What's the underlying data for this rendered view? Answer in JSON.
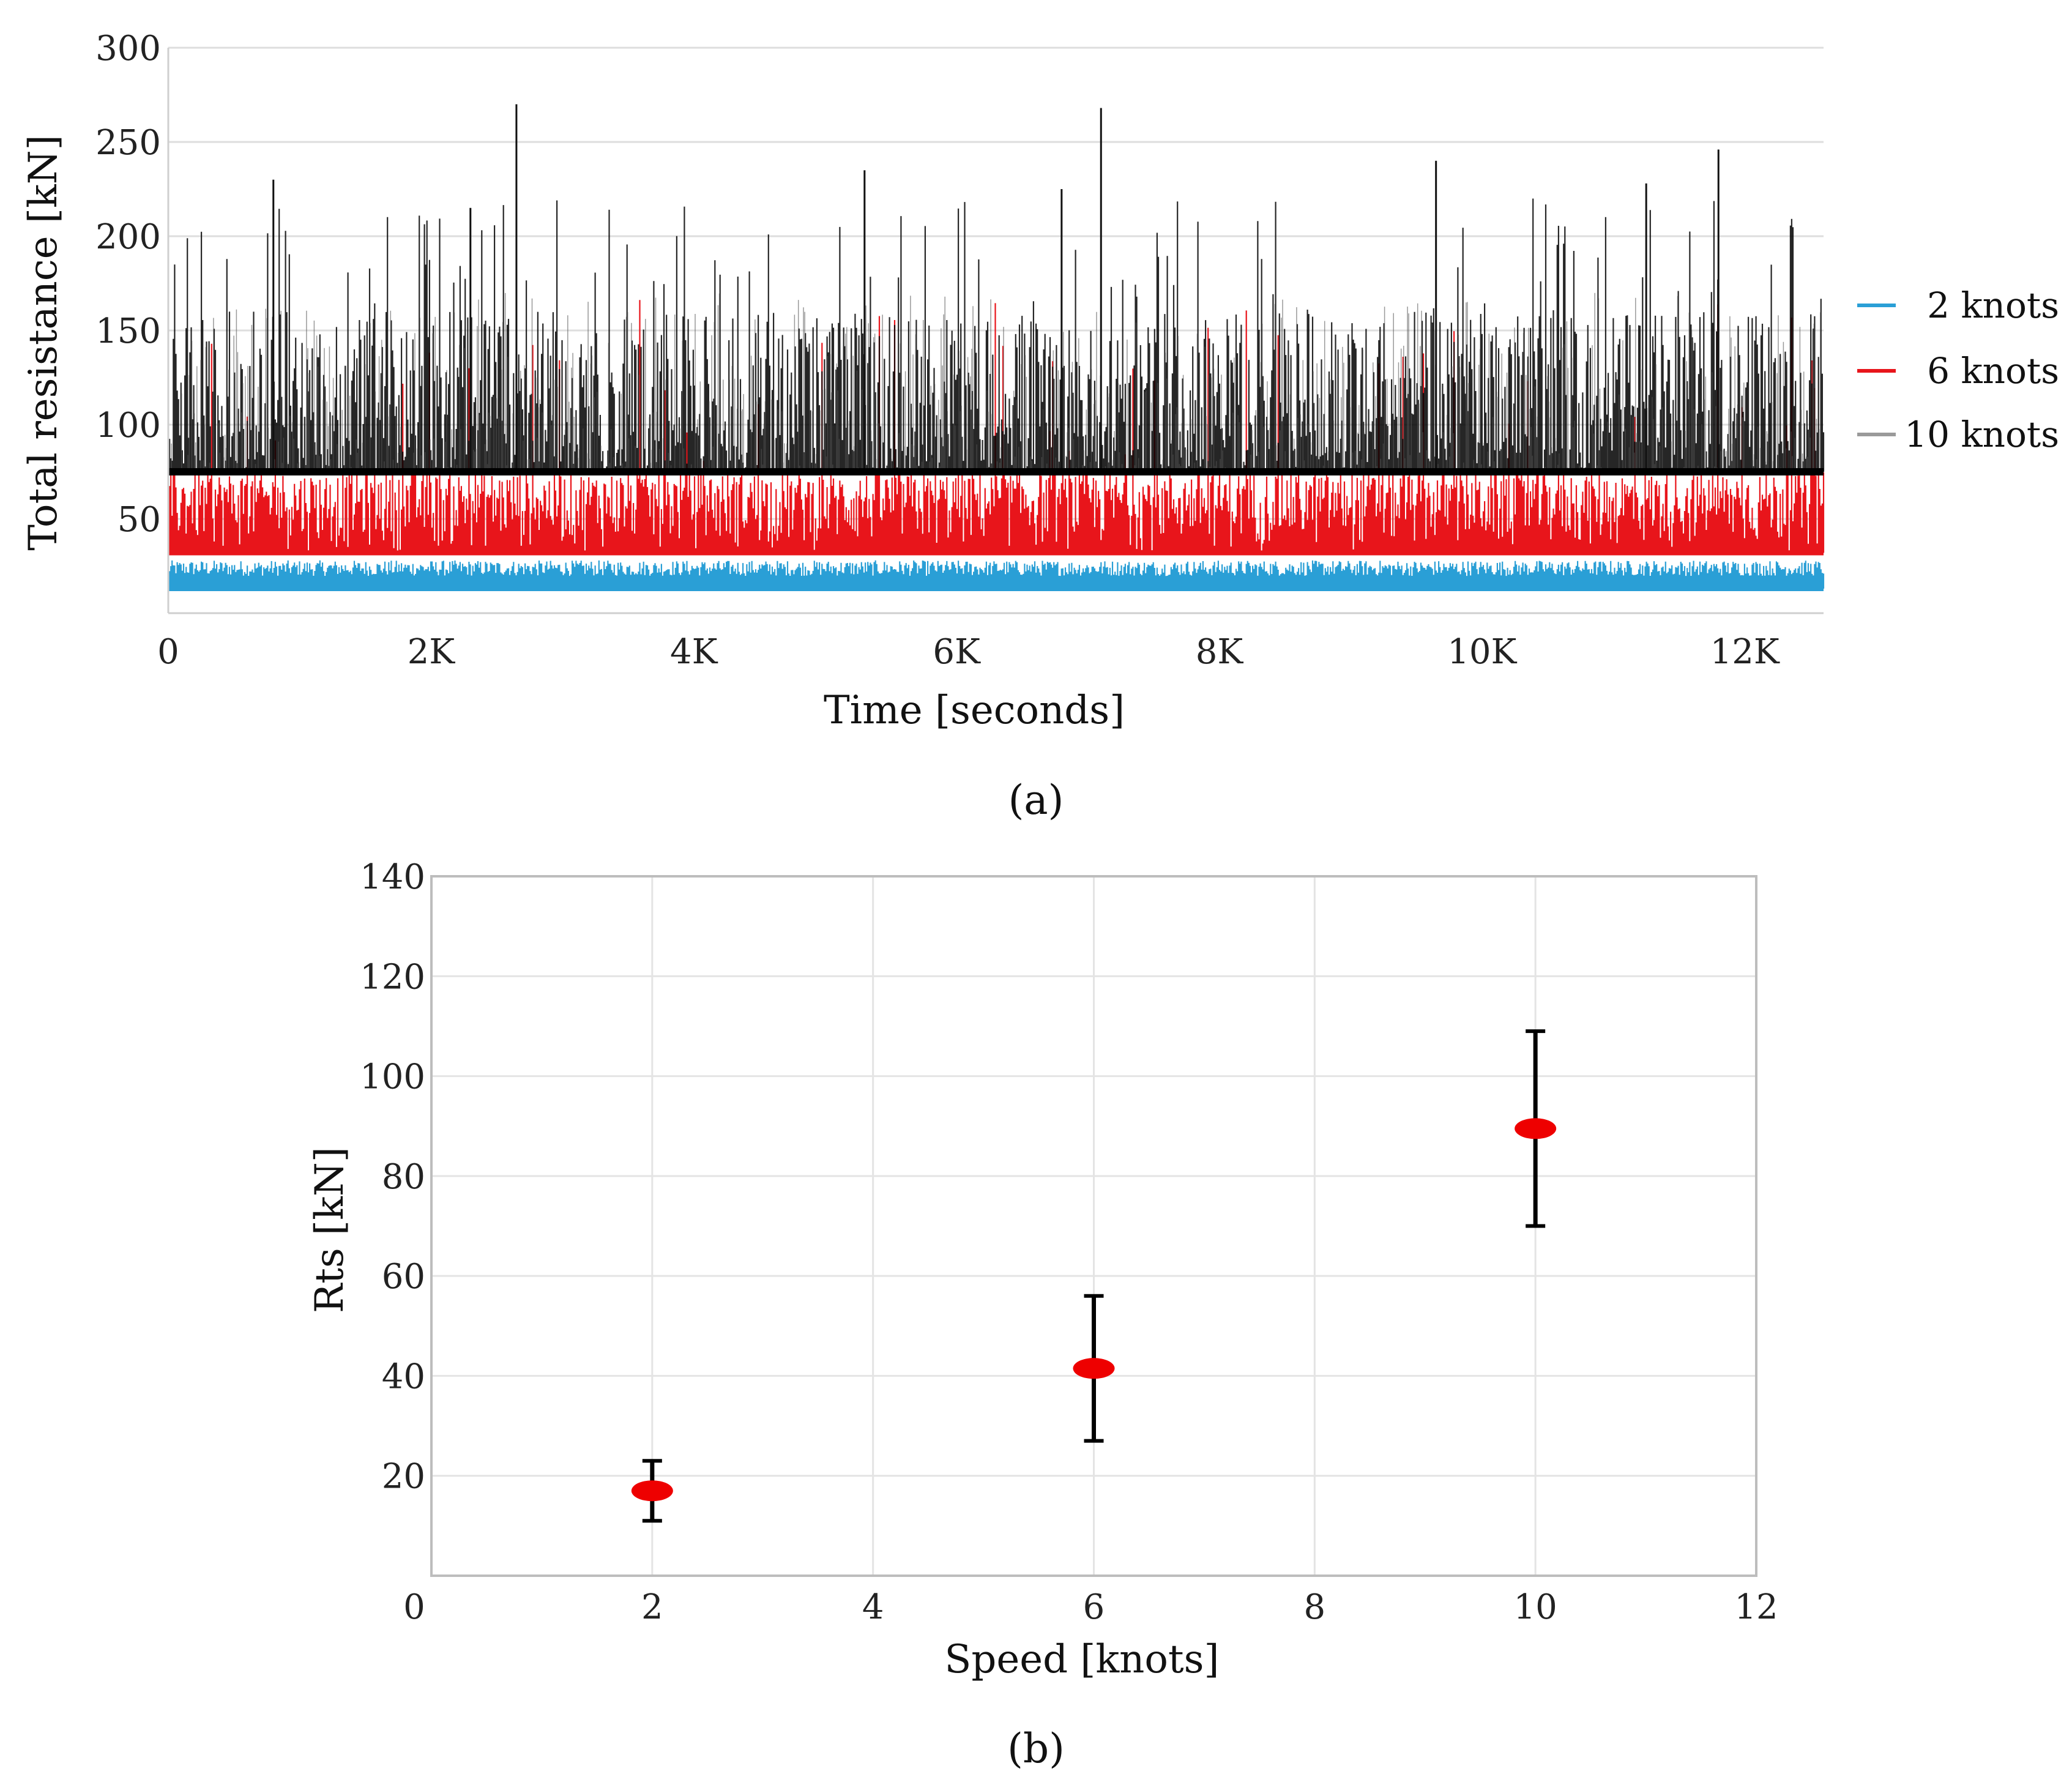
{
  "chart_data": [
    {
      "type": "line",
      "panel_label": "(a)",
      "title": "",
      "xlabel": "Time [seconds]",
      "ylabel": "Total resistance [kN]",
      "xlim": [
        0,
        12600
      ],
      "ylim": [
        0,
        300
      ],
      "x_ticks": [
        0,
        2000,
        4000,
        6000,
        8000,
        10000,
        12000
      ],
      "x_tick_labels": [
        "0",
        "2K",
        "4K",
        "6K",
        "8K",
        "10K",
        "12K"
      ],
      "y_ticks": [
        50,
        100,
        150,
        200,
        250,
        300
      ],
      "y_tick_labels": [
        "50",
        "100",
        "150",
        "200",
        "250",
        "300"
      ],
      "grid": "horizontal",
      "legend_position": "right",
      "series": [
        {
          "name": "2 knots",
          "color": "#2a9fd6",
          "baseline": 13,
          "typical_max": 28,
          "max": 29
        },
        {
          "name": "6 knots",
          "color": "#e8151b",
          "baseline": 32,
          "typical_max": 75,
          "max": 185
        },
        {
          "name": "10 knots",
          "color": "#000000",
          "legend_color": "#9a9a9a",
          "baseline": 75,
          "typical_max": 160,
          "max": 270,
          "peaks": [
            [
              800,
              230
            ],
            [
              2300,
              215
            ],
            [
              2650,
              270
            ],
            [
              5300,
              235
            ],
            [
              6800,
              225
            ],
            [
              7100,
              268
            ],
            [
              9650,
              240
            ],
            [
              11250,
              228
            ],
            [
              11800,
              246
            ]
          ]
        }
      ]
    },
    {
      "type": "scatter",
      "panel_label": "(b)",
      "title": "",
      "xlabel": "Speed [knots]",
      "ylabel": "Rts [kN]",
      "xlim": [
        0,
        12
      ],
      "ylim": [
        0,
        140
      ],
      "x_ticks": [
        0,
        2,
        4,
        6,
        8,
        10,
        12
      ],
      "x_tick_labels": [
        "0",
        "2",
        "4",
        "6",
        "8",
        "10",
        "12"
      ],
      "y_ticks": [
        20,
        40,
        60,
        80,
        100,
        120,
        140
      ],
      "y_tick_labels": [
        "20",
        "40",
        "60",
        "80",
        "100",
        "120",
        "140"
      ],
      "grid": "both",
      "marker_color": "#ee0000",
      "errorbar_color": "#000000",
      "points": [
        {
          "x": 2,
          "y": 17,
          "err_low": 11,
          "err_high": 23
        },
        {
          "x": 6,
          "y": 41.5,
          "err_low": 27,
          "err_high": 56
        },
        {
          "x": 10,
          "y": 89.5,
          "err_low": 70,
          "err_high": 109
        }
      ]
    }
  ]
}
